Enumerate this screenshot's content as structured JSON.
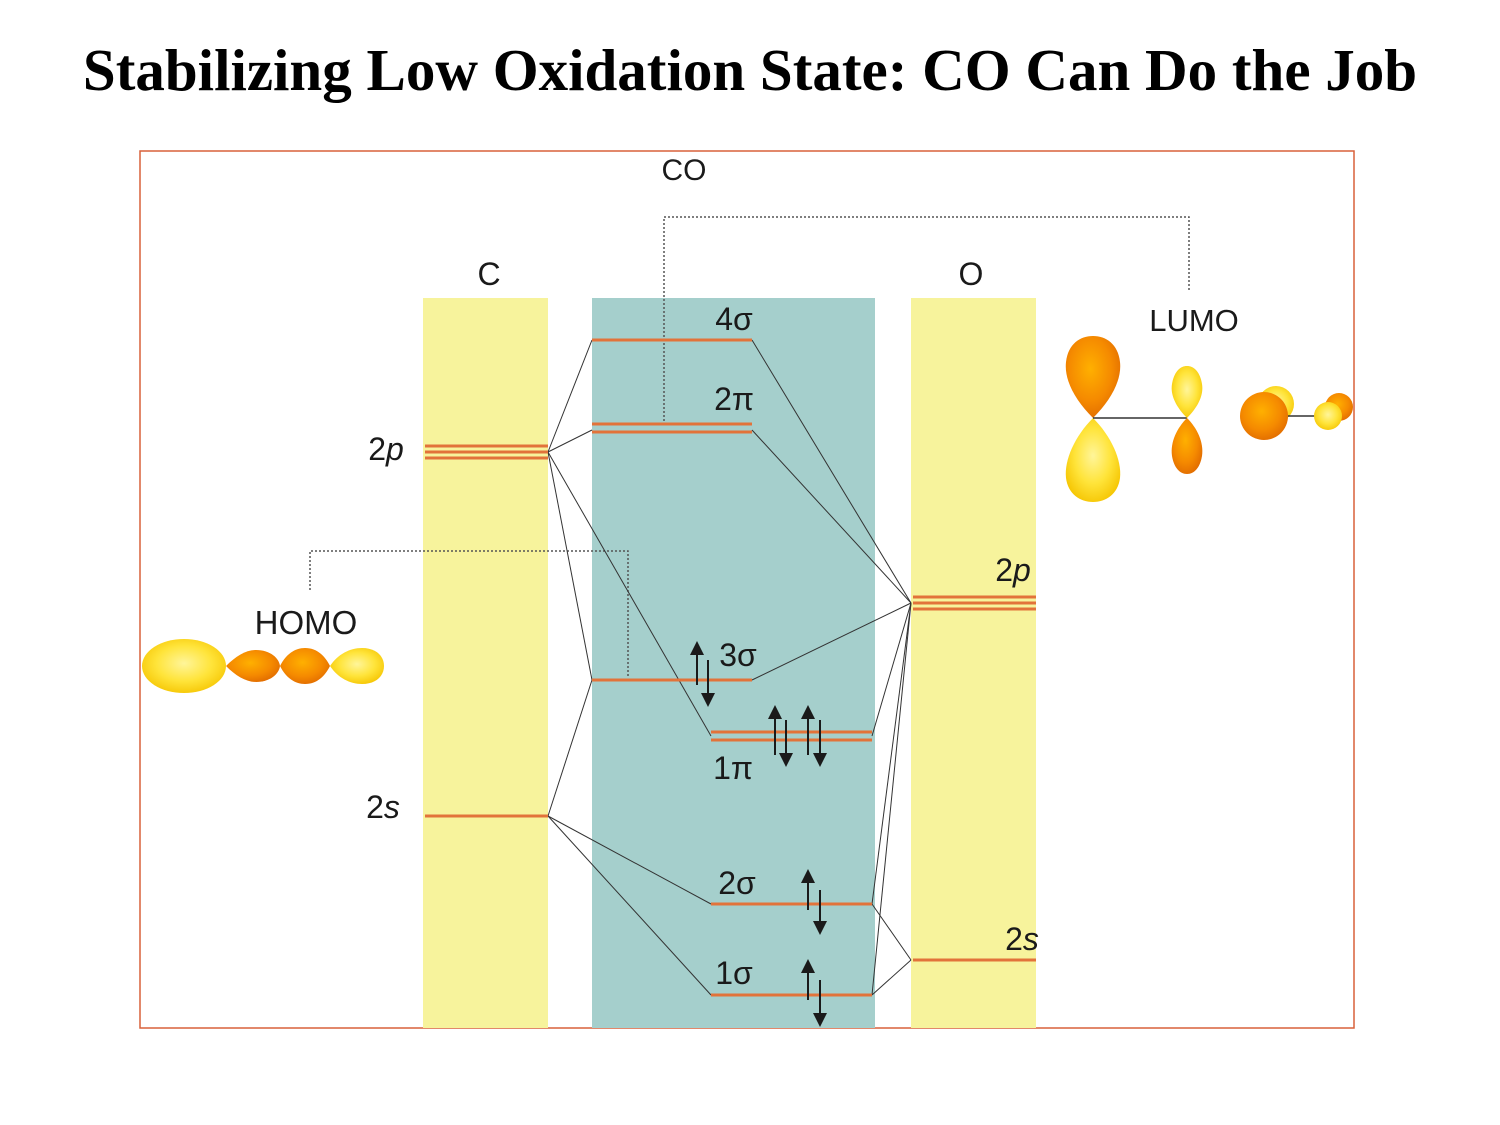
{
  "title": "Stabilizing Low Oxidation State: CO Can Do the Job",
  "colors": {
    "atom_column": "#f7f39c",
    "molecule_column": "#a5cfcc",
    "level": "#e2733a",
    "frame": "#d9603a",
    "orbital_light": "#ffe84a",
    "orbital_dark": "#f58a00"
  },
  "labels": {
    "molecule": "CO",
    "carbon": "C",
    "oxygen": "O",
    "homo": "HOMO",
    "lumo": "LUMO"
  },
  "atomic_orbitals": {
    "c_2p": {
      "num": "2",
      "sub": "p"
    },
    "c_2s": {
      "num": "2",
      "sub": "s"
    },
    "o_2p": {
      "num": "2",
      "sub": "p"
    },
    "o_2s": {
      "num": "2",
      "sub": "s"
    }
  },
  "molecular_orbitals": {
    "s4": "4σ",
    "p2": "2π",
    "s3": "3σ",
    "p1": "1π",
    "s2": "2σ",
    "s1": "1σ"
  },
  "icons": [
    "up-down-arrow-icon",
    "homo-lobe-icon",
    "lumo-lobe-icon"
  ]
}
